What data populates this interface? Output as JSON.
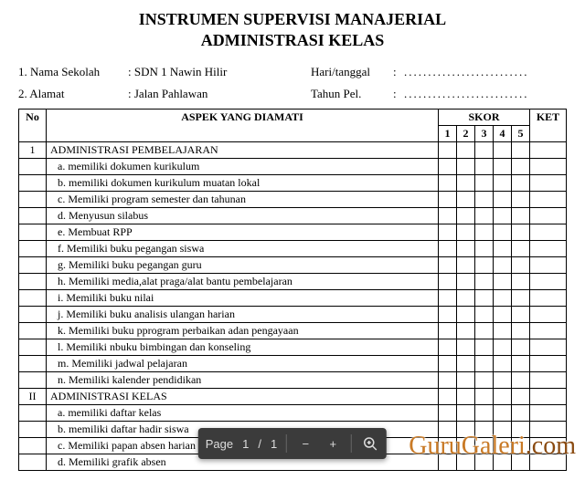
{
  "title_line1": "INSTRUMEN SUPERVISI MANAJERIAL",
  "title_line2": "ADMINISTRASI KELAS",
  "header": {
    "row1_label": "1. Nama Sekolah",
    "row1_value": ": SDN 1 Nawin Hilir",
    "row1_rlabel": "Hari/tanggal",
    "row1_rcolon": ":",
    "row1_rvalue": "..........................",
    "row2_label": "2. Alamat",
    "row2_value": ": Jalan Pahlawan",
    "row2_rlabel": "Tahun Pel.",
    "row2_rcolon": ":",
    "row2_rvalue": ".........................."
  },
  "columns": {
    "no": "No",
    "aspek": "ASPEK YANG DIAMATI",
    "skor": "SKOR",
    "s1": "1",
    "s2": "2",
    "s3": "3",
    "s4": "4",
    "s5": "5",
    "ket": "KET"
  },
  "sections": [
    {
      "no": "1",
      "title": "ADMINISTRASI PEMBELAJARAN",
      "items": [
        "a.  memiliki dokumen kurikulum",
        "b.  memiliki dokumen kurikulum muatan lokal",
        "c.  Memiliki program semester dan tahunan",
        "d.  Menyusun silabus",
        "e.  Membuat RPP",
        "f.  Memiliki buku pegangan siswa",
        "g.  Memiliki buku pegangan guru",
        "h.  Memiliki media,alat praga/alat bantu pembelajaran",
        "i.  Memiliki buku nilai",
        "j.  Memiliki buku analisis ulangan harian",
        "k.  Memiliki buku pprogram perbaikan adan pengayaan",
        "l.  Memiliki nbuku bimbingan dan konseling",
        "m.  Memiliki jadwal pelajaran",
        "n.  Memiliki kalender pendidikan"
      ]
    },
    {
      "no": "II",
      "title": "ADMINISTRASI KELAS",
      "items": [
        "a.  memiliki daftar kelas",
        "b.  memiliki daftar hadir siswa",
        "c.  Memiliki papan absen harian siswa",
        "d.  Memiliki grafik absen"
      ]
    }
  ],
  "toolbar": {
    "page_label": "Page",
    "page_current": "1",
    "page_sep": "/",
    "page_total": "1",
    "minus": "−",
    "plus": "+"
  },
  "watermark": {
    "text1": "GuruGaleri",
    "text2": ".com"
  },
  "style": {
    "toolbar_bg": "#3b3b3b",
    "toolbar_fg": "#dddddd",
    "watermark_color": "#c97a26",
    "border_color": "#000000",
    "background": "#ffffff",
    "title_fontsize": 18,
    "body_fontsize": 12
  }
}
